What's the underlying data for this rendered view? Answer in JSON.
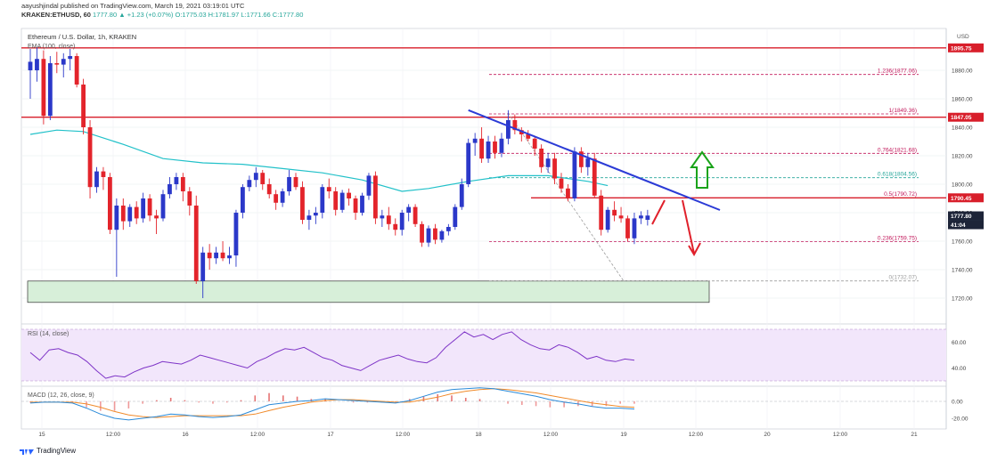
{
  "header": {
    "line1": "aayushjindal published on TradingView.com, March 19, 2021 03:19:01 UTC",
    "line2_symbol": "KRAKEN:ETHUSD, 60",
    "line2_values": "1777.80 ▲ +1.23 (+0.07%) O:1775.03 H:1781.97 L:1771.66 C:1777.80"
  },
  "footer": {
    "brand": "TradingView"
  },
  "colors": {
    "up": "#2b38c9",
    "down": "#e3242b",
    "ema": "#22c1c9",
    "resistance": "#d81e2a",
    "trendline": "#2b3bd6",
    "fib": "#c2185b",
    "arrow_up": "#1aa31a",
    "arrow_down": "#e0202b",
    "rsi_line": "#7e34c7",
    "rsi_band": "#f2e6fb",
    "macd_line": "#2a8ad8",
    "signal_line": "#f08a2a",
    "support_zone": "#d7efd9"
  },
  "chart_data": [
    {
      "type": "candlestick",
      "title": "Ethereum / U.S. Dollar, 1h, KRAKEN",
      "indicator_label": "EMA (100, close)",
      "y_axis_unit": "USD",
      "y_axis_ticks": [
        1720,
        1740,
        1760,
        1780,
        1800,
        1820,
        1840,
        1860,
        1880
      ],
      "x_axis_labels": [
        "15",
        "12:00",
        "16",
        "12:00",
        "17",
        "12:00",
        "18",
        "12:00",
        "19",
        "12:00",
        "20",
        "12:00",
        "21"
      ],
      "price_tags": [
        {
          "label": "1895.75",
          "kind": "red"
        },
        {
          "label": "1847.05",
          "kind": "red"
        },
        {
          "label": "1790.45",
          "kind": "red"
        },
        {
          "label": "1777.80",
          "kind": "dark"
        },
        {
          "label": "41:04",
          "kind": "dark"
        }
      ],
      "horizontal_levels": [
        1895.75,
        1847.05,
        1790.45
      ],
      "fib_levels": [
        {
          "label": "1.236(1877.06)",
          "value": 1877.06
        },
        {
          "label": "1(1849.36)",
          "value": 1849.36
        },
        {
          "label": "0.764(1821.68)",
          "value": 1821.68
        },
        {
          "label": "0.618(1804.56)",
          "value": 1804.56
        },
        {
          "label": "0.5(1790.72)",
          "value": 1790.72
        },
        {
          "label": "0.236(1759.75)",
          "value": 1759.75
        },
        {
          "label": "0(1732.07)",
          "value": 1732.07
        }
      ],
      "support_zone": [
        1717,
        1732
      ],
      "trendline": [
        {
          "t": 66,
          "p": 1852
        },
        {
          "t": 98,
          "p": 1784
        }
      ],
      "ema_100": [
        {
          "t": 0,
          "p": 1835
        },
        {
          "t": 4,
          "p": 1838
        },
        {
          "t": 8,
          "p": 1837
        },
        {
          "t": 14,
          "p": 1828
        },
        {
          "t": 20,
          "p": 1818
        },
        {
          "t": 26,
          "p": 1815
        },
        {
          "t": 32,
          "p": 1814
        },
        {
          "t": 38,
          "p": 1811
        },
        {
          "t": 44,
          "p": 1808
        },
        {
          "t": 50,
          "p": 1803
        },
        {
          "t": 56,
          "p": 1795
        },
        {
          "t": 60,
          "p": 1797
        },
        {
          "t": 66,
          "p": 1802
        },
        {
          "t": 72,
          "p": 1806
        },
        {
          "t": 78,
          "p": 1806
        },
        {
          "t": 84,
          "p": 1802
        },
        {
          "t": 87,
          "p": 1799
        }
      ],
      "candles": [
        {
          "o": 1880,
          "h": 1895,
          "l": 1860,
          "c": 1886
        },
        {
          "o": 1880,
          "h": 1896,
          "l": 1872,
          "c": 1888
        },
        {
          "o": 1888,
          "h": 1894,
          "l": 1842,
          "c": 1848
        },
        {
          "o": 1848,
          "h": 1890,
          "l": 1845,
          "c": 1885
        },
        {
          "o": 1885,
          "h": 1893,
          "l": 1878,
          "c": 1884
        },
        {
          "o": 1884,
          "h": 1892,
          "l": 1875,
          "c": 1888
        },
        {
          "o": 1888,
          "h": 1895,
          "l": 1880,
          "c": 1890
        },
        {
          "o": 1890,
          "h": 1892,
          "l": 1868,
          "c": 1870
        },
        {
          "o": 1870,
          "h": 1874,
          "l": 1835,
          "c": 1840
        },
        {
          "o": 1840,
          "h": 1845,
          "l": 1790,
          "c": 1798
        },
        {
          "o": 1798,
          "h": 1812,
          "l": 1794,
          "c": 1809
        },
        {
          "o": 1809,
          "h": 1812,
          "l": 1796,
          "c": 1805
        },
        {
          "o": 1805,
          "h": 1808,
          "l": 1765,
          "c": 1768
        },
        {
          "o": 1768,
          "h": 1790,
          "l": 1735,
          "c": 1785
        },
        {
          "o": 1785,
          "h": 1790,
          "l": 1768,
          "c": 1774
        },
        {
          "o": 1774,
          "h": 1786,
          "l": 1770,
          "c": 1784
        },
        {
          "o": 1784,
          "h": 1788,
          "l": 1772,
          "c": 1776
        },
        {
          "o": 1776,
          "h": 1794,
          "l": 1773,
          "c": 1790
        },
        {
          "o": 1790,
          "h": 1793,
          "l": 1774,
          "c": 1778
        },
        {
          "o": 1778,
          "h": 1782,
          "l": 1765,
          "c": 1776
        },
        {
          "o": 1776,
          "h": 1796,
          "l": 1774,
          "c": 1793
        },
        {
          "o": 1793,
          "h": 1805,
          "l": 1790,
          "c": 1800
        },
        {
          "o": 1800,
          "h": 1808,
          "l": 1796,
          "c": 1805
        },
        {
          "o": 1805,
          "h": 1808,
          "l": 1788,
          "c": 1795
        },
        {
          "o": 1795,
          "h": 1798,
          "l": 1778,
          "c": 1785
        },
        {
          "o": 1785,
          "h": 1792,
          "l": 1730,
          "c": 1732
        },
        {
          "o": 1732,
          "h": 1756,
          "l": 1720,
          "c": 1752
        },
        {
          "o": 1752,
          "h": 1758,
          "l": 1740,
          "c": 1748
        },
        {
          "o": 1748,
          "h": 1756,
          "l": 1744,
          "c": 1752
        },
        {
          "o": 1752,
          "h": 1760,
          "l": 1746,
          "c": 1748
        },
        {
          "o": 1748,
          "h": 1756,
          "l": 1744,
          "c": 1750
        },
        {
          "o": 1750,
          "h": 1782,
          "l": 1742,
          "c": 1780
        },
        {
          "o": 1780,
          "h": 1800,
          "l": 1776,
          "c": 1798
        },
        {
          "o": 1798,
          "h": 1806,
          "l": 1795,
          "c": 1803
        },
        {
          "o": 1803,
          "h": 1812,
          "l": 1798,
          "c": 1808
        },
        {
          "o": 1808,
          "h": 1810,
          "l": 1796,
          "c": 1800
        },
        {
          "o": 1800,
          "h": 1804,
          "l": 1790,
          "c": 1793
        },
        {
          "o": 1793,
          "h": 1796,
          "l": 1782,
          "c": 1787
        },
        {
          "o": 1787,
          "h": 1797,
          "l": 1784,
          "c": 1795
        },
        {
          "o": 1795,
          "h": 1810,
          "l": 1792,
          "c": 1805
        },
        {
          "o": 1805,
          "h": 1808,
          "l": 1796,
          "c": 1798
        },
        {
          "o": 1798,
          "h": 1802,
          "l": 1772,
          "c": 1775
        },
        {
          "o": 1775,
          "h": 1782,
          "l": 1768,
          "c": 1778
        },
        {
          "o": 1778,
          "h": 1784,
          "l": 1772,
          "c": 1780
        },
        {
          "o": 1780,
          "h": 1800,
          "l": 1776,
          "c": 1798
        },
        {
          "o": 1798,
          "h": 1804,
          "l": 1790,
          "c": 1795
        },
        {
          "o": 1795,
          "h": 1798,
          "l": 1778,
          "c": 1782
        },
        {
          "o": 1782,
          "h": 1796,
          "l": 1780,
          "c": 1794
        },
        {
          "o": 1794,
          "h": 1797,
          "l": 1785,
          "c": 1790
        },
        {
          "o": 1790,
          "h": 1792,
          "l": 1775,
          "c": 1780
        },
        {
          "o": 1780,
          "h": 1794,
          "l": 1778,
          "c": 1792
        },
        {
          "o": 1792,
          "h": 1808,
          "l": 1789,
          "c": 1806
        },
        {
          "o": 1806,
          "h": 1809,
          "l": 1772,
          "c": 1776
        },
        {
          "o": 1776,
          "h": 1782,
          "l": 1770,
          "c": 1778
        },
        {
          "o": 1778,
          "h": 1784,
          "l": 1768,
          "c": 1772
        },
        {
          "o": 1772,
          "h": 1776,
          "l": 1764,
          "c": 1768
        },
        {
          "o": 1768,
          "h": 1782,
          "l": 1764,
          "c": 1780
        },
        {
          "o": 1780,
          "h": 1786,
          "l": 1774,
          "c": 1784
        },
        {
          "o": 1784,
          "h": 1786,
          "l": 1770,
          "c": 1772
        },
        {
          "o": 1772,
          "h": 1774,
          "l": 1756,
          "c": 1759
        },
        {
          "o": 1759,
          "h": 1771,
          "l": 1756,
          "c": 1769
        },
        {
          "o": 1769,
          "h": 1772,
          "l": 1758,
          "c": 1761
        },
        {
          "o": 1761,
          "h": 1768,
          "l": 1759,
          "c": 1767
        },
        {
          "o": 1767,
          "h": 1772,
          "l": 1764,
          "c": 1770
        },
        {
          "o": 1770,
          "h": 1786,
          "l": 1768,
          "c": 1784
        },
        {
          "o": 1784,
          "h": 1804,
          "l": 1782,
          "c": 1800
        },
        {
          "o": 1800,
          "h": 1832,
          "l": 1798,
          "c": 1829
        },
        {
          "o": 1829,
          "h": 1836,
          "l": 1820,
          "c": 1832
        },
        {
          "o": 1832,
          "h": 1840,
          "l": 1815,
          "c": 1818
        },
        {
          "o": 1818,
          "h": 1834,
          "l": 1815,
          "c": 1830
        },
        {
          "o": 1830,
          "h": 1834,
          "l": 1818,
          "c": 1822
        },
        {
          "o": 1822,
          "h": 1836,
          "l": 1819,
          "c": 1832
        },
        {
          "o": 1832,
          "h": 1852,
          "l": 1828,
          "c": 1845
        },
        {
          "o": 1845,
          "h": 1849,
          "l": 1835,
          "c": 1838
        },
        {
          "o": 1838,
          "h": 1840,
          "l": 1830,
          "c": 1835
        },
        {
          "o": 1835,
          "h": 1838,
          "l": 1830,
          "c": 1832
        },
        {
          "o": 1832,
          "h": 1834,
          "l": 1820,
          "c": 1825
        },
        {
          "o": 1825,
          "h": 1828,
          "l": 1808,
          "c": 1812
        },
        {
          "o": 1812,
          "h": 1822,
          "l": 1808,
          "c": 1818
        },
        {
          "o": 1818,
          "h": 1822,
          "l": 1800,
          "c": 1804
        },
        {
          "o": 1804,
          "h": 1808,
          "l": 1794,
          "c": 1797
        },
        {
          "o": 1797,
          "h": 1800,
          "l": 1788,
          "c": 1790
        },
        {
          "o": 1790,
          "h": 1826,
          "l": 1788,
          "c": 1823
        },
        {
          "o": 1823,
          "h": 1826,
          "l": 1808,
          "c": 1812
        },
        {
          "o": 1812,
          "h": 1822,
          "l": 1806,
          "c": 1818
        },
        {
          "o": 1818,
          "h": 1822,
          "l": 1790,
          "c": 1792
        },
        {
          "o": 1792,
          "h": 1796,
          "l": 1764,
          "c": 1768
        },
        {
          "o": 1768,
          "h": 1784,
          "l": 1766,
          "c": 1782
        },
        {
          "o": 1782,
          "h": 1788,
          "l": 1774,
          "c": 1778
        },
        {
          "o": 1778,
          "h": 1784,
          "l": 1773,
          "c": 1776
        },
        {
          "o": 1776,
          "h": 1778,
          "l": 1760,
          "c": 1762
        },
        {
          "o": 1762,
          "h": 1780,
          "l": 1758,
          "c": 1776
        },
        {
          "o": 1776,
          "h": 1781,
          "l": 1772,
          "c": 1778
        },
        {
          "o": 1775,
          "h": 1782,
          "l": 1771,
          "c": 1778
        }
      ]
    },
    {
      "type": "line",
      "title": "RSI (14, close)",
      "y_axis_ticks": [
        40,
        60
      ],
      "band": [
        30,
        70
      ],
      "values": [
        52,
        46,
        54,
        55,
        52,
        50,
        45,
        38,
        32,
        34,
        33,
        37,
        40,
        42,
        45,
        44,
        43,
        46,
        50,
        48,
        46,
        44,
        42,
        40,
        45,
        48,
        52,
        55,
        54,
        56,
        52,
        48,
        46,
        42,
        40,
        38,
        42,
        46,
        48,
        50,
        47,
        45,
        44,
        48,
        56,
        62,
        68,
        64,
        66,
        62,
        66,
        68,
        62,
        58,
        55,
        54,
        58,
        56,
        52,
        47,
        49,
        46,
        45,
        47,
        46
      ]
    },
    {
      "type": "line",
      "title": "MACD (12, 26, close, 9)",
      "y_axis_ticks": [
        0,
        -20
      ],
      "series": [
        {
          "name": "MACD",
          "values": [
            -2,
            -1,
            -1,
            -2,
            -8,
            -15,
            -20,
            -22,
            -20,
            -18,
            -15,
            -16,
            -18,
            -19,
            -18,
            -16,
            -10,
            -4,
            -2,
            0,
            1,
            3,
            2,
            1,
            0,
            -1,
            -2,
            1,
            6,
            11,
            14,
            15,
            16,
            15,
            12,
            9,
            6,
            2,
            -1,
            -3,
            -6,
            -8,
            -8,
            -9
          ]
        },
        {
          "name": "Signal",
          "values": [
            -1,
            -1,
            -1,
            -1,
            -3,
            -7,
            -12,
            -16,
            -18,
            -19,
            -18,
            -17,
            -17,
            -17,
            -17,
            -17,
            -15,
            -11,
            -7,
            -4,
            -1,
            1,
            2,
            2,
            1,
            0,
            -1,
            -1,
            2,
            5,
            9,
            12,
            14,
            15,
            14,
            12,
            10,
            7,
            4,
            1,
            -2,
            -4,
            -6,
            -7
          ]
        },
        {
          "name": "Histogram",
          "values": [
            -1,
            0,
            0,
            -1,
            -5,
            -8,
            -8,
            -6,
            -2,
            1,
            3,
            1,
            -1,
            -2,
            -1,
            1,
            5,
            7,
            5,
            4,
            2,
            2,
            0,
            -1,
            -1,
            -1,
            -1,
            2,
            4,
            6,
            5,
            3,
            2,
            0,
            -2,
            -3,
            -4,
            -5,
            -5,
            -4,
            -4,
            -4,
            -2,
            -2
          ]
        }
      ]
    }
  ]
}
